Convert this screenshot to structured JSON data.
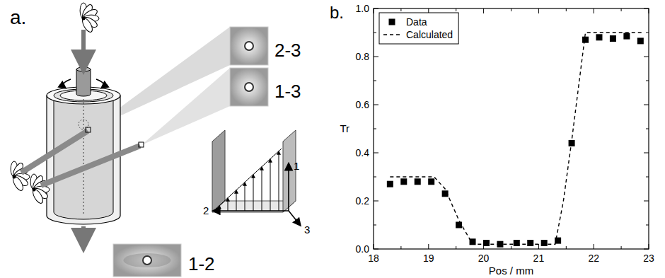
{
  "diagram": {
    "panel_label": "a.",
    "patterns": [
      {
        "label": "2-3"
      },
      {
        "label": "1-3"
      },
      {
        "label": "1-2"
      }
    ],
    "axes": [
      "1",
      "2",
      "3"
    ]
  },
  "chart_data": {
    "type": "scatter",
    "title": "b.",
    "x_label": "Pos / mm",
    "y_label": "Tr",
    "xlim": [
      18,
      23
    ],
    "ylim": [
      0,
      1
    ],
    "xticks": [
      18,
      19,
      20,
      21,
      22,
      23
    ],
    "yticks": [
      {
        "value": 0,
        "label": "0.0"
      },
      {
        "value": 0.2,
        "label": "0.2"
      },
      {
        "value": 0.4,
        "label": "0.4"
      },
      {
        "value": 0.6,
        "label": "0.6"
      },
      {
        "value": 0.8,
        "label": "0.8"
      },
      {
        "value": 1,
        "label": "1.0"
      }
    ],
    "legend": "upper left",
    "series": [
      {
        "name": "Data",
        "type": "scatter",
        "marker": "square",
        "color": "#000000",
        "x": [
          18.3,
          18.55,
          18.8,
          19.05,
          19.3,
          19.55,
          19.8,
          20.05,
          20.3,
          20.6,
          20.85,
          21.1,
          21.35,
          21.6,
          21.85,
          22.1,
          22.35,
          22.6,
          22.85
        ],
        "values": [
          0.27,
          0.28,
          0.28,
          0.28,
          0.23,
          0.1,
          0.03,
          0.025,
          0.02,
          0.025,
          0.025,
          0.025,
          0.035,
          0.44,
          0.87,
          0.88,
          0.875,
          0.885,
          0.865
        ]
      },
      {
        "name": "Calculated",
        "type": "line",
        "line_style": "dashed",
        "color": "#000000",
        "x": [
          18.3,
          19.1,
          19.3,
          19.55,
          19.8,
          21.3,
          21.45,
          21.6,
          21.85,
          22.9
        ],
        "values": [
          0.3,
          0.3,
          0.25,
          0.12,
          0.02,
          0.02,
          0.2,
          0.45,
          0.9,
          0.9
        ]
      }
    ]
  }
}
